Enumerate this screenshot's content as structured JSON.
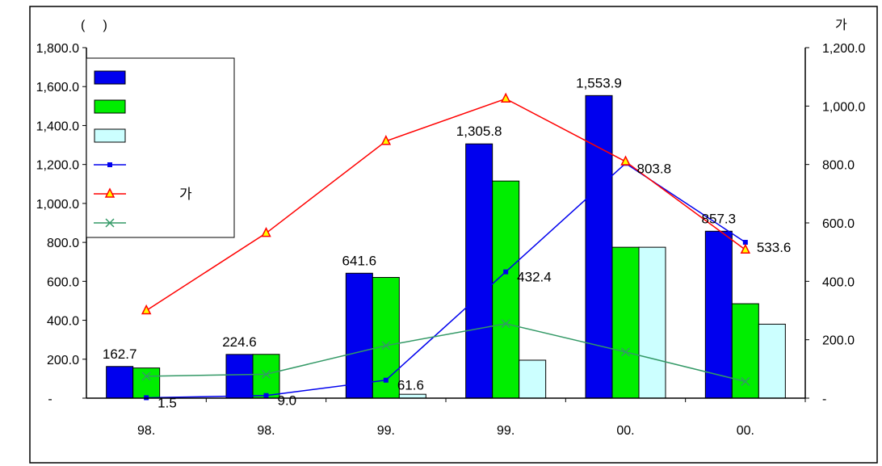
{
  "chart_data": {
    "type": "bar",
    "title": "",
    "left_unit_label": "(     )",
    "right_unit_label": "가",
    "categories": [
      "98.",
      "98.",
      "99.",
      "99.",
      "00.",
      "00."
    ],
    "ylim_left": [
      0,
      1800
    ],
    "ylim_right": [
      0,
      1200
    ],
    "left_ticks": [
      "-",
      "200.0",
      "400.0",
      "600.0",
      "800.0",
      "1,000.0",
      "1,200.0",
      "1,400.0",
      "1,600.0",
      "1,800.0"
    ],
    "right_ticks": [
      "-",
      "200.0",
      "400.0",
      "600.0",
      "800.0",
      "1,000.0",
      "1,200.0"
    ],
    "legend_position": "top-left",
    "bar_series": [
      {
        "name": "",
        "color": "#0000ee",
        "axis": "left",
        "values": [
          162.7,
          224.6,
          641.6,
          1305.8,
          1553.9,
          857.3
        ],
        "labels": [
          "162.7",
          "224.6",
          "641.6",
          "1,305.8",
          "1,553.9",
          "857.3"
        ]
      },
      {
        "name": "",
        "color": "#00ee00",
        "axis": "left",
        "values": [
          155,
          225,
          620,
          1115,
          775,
          485
        ],
        "labels": []
      },
      {
        "name": "",
        "color": "#ccffff",
        "axis": "left",
        "values": [
          0,
          0,
          20,
          195,
          775,
          380
        ],
        "labels": []
      }
    ],
    "line_series": [
      {
        "name": "",
        "color": "#0000ee",
        "marker": "square",
        "axis": "right",
        "values": [
          1.5,
          9.0,
          61.6,
          432.4,
          803.8,
          533.6
        ],
        "labels": [
          "1.5",
          "9.0",
          "61.6",
          "432.4",
          "803.8",
          "533.6"
        ]
      },
      {
        "name": "가",
        "color": "#ff0000",
        "marker": "triangle",
        "axis": "right",
        "values": [
          300,
          565,
          880,
          1025,
          810,
          508
        ],
        "labels": []
      },
      {
        "name": "",
        "color": "#339966",
        "marker": "x",
        "axis": "right",
        "values": [
          75,
          82,
          180,
          255,
          158,
          57
        ],
        "labels": []
      }
    ]
  }
}
